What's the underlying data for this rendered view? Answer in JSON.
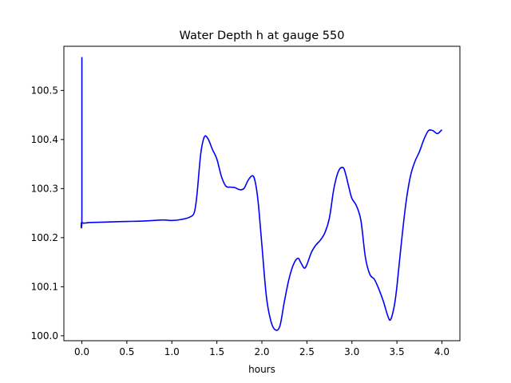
{
  "chart_data": {
    "type": "line",
    "title": "Water Depth h at gauge 550",
    "xlabel": "hours",
    "ylabel": "",
    "xlim": [
      -0.2,
      4.2
    ],
    "ylim": [
      99.99,
      100.59
    ],
    "xticks": [
      0.0,
      0.5,
      1.0,
      1.5,
      2.0,
      2.5,
      3.0,
      3.5,
      4.0
    ],
    "xtick_labels": [
      "0.0",
      "0.5",
      "1.0",
      "1.5",
      "2.0",
      "2.5",
      "3.0",
      "3.5",
      "4.0"
    ],
    "yticks": [
      100.0,
      100.1,
      100.2,
      100.3,
      100.4,
      100.5
    ],
    "ytick_labels": [
      "100.0",
      "100.1",
      "100.2",
      "100.3",
      "100.4",
      "100.5"
    ],
    "grid": false,
    "series": [
      {
        "color": "#0000ff",
        "x": [
          0.0,
          0.0,
          0.0,
          0.1,
          0.3,
          0.5,
          0.7,
          0.9,
          1.0,
          1.1,
          1.2,
          1.25,
          1.28,
          1.32,
          1.36,
          1.4,
          1.45,
          1.5,
          1.55,
          1.6,
          1.65,
          1.7,
          1.75,
          1.8,
          1.85,
          1.9,
          1.93,
          1.96,
          2.0,
          2.05,
          2.1,
          2.15,
          2.2,
          2.25,
          2.3,
          2.35,
          2.4,
          2.43,
          2.47,
          2.5,
          2.55,
          2.6,
          2.65,
          2.7,
          2.75,
          2.8,
          2.85,
          2.9,
          2.93,
          2.97,
          3.0,
          3.05,
          3.1,
          3.15,
          3.2,
          3.25,
          3.3,
          3.35,
          3.4,
          3.43,
          3.47,
          3.5,
          3.55,
          3.6,
          3.65,
          3.7,
          3.75,
          3.8,
          3.85,
          3.9,
          3.95,
          4.0
        ],
        "y": [
          100.568,
          100.25,
          100.231,
          100.231,
          100.232,
          100.233,
          100.234,
          100.236,
          100.235,
          100.237,
          100.242,
          100.252,
          100.29,
          100.37,
          100.405,
          100.402,
          100.38,
          100.36,
          100.325,
          100.305,
          100.303,
          100.302,
          100.298,
          100.3,
          100.318,
          100.326,
          100.31,
          100.27,
          100.185,
          100.08,
          100.03,
          100.012,
          100.02,
          100.07,
          100.115,
          100.145,
          100.158,
          100.15,
          100.138,
          100.145,
          100.17,
          100.185,
          100.195,
          100.21,
          100.24,
          100.3,
          100.335,
          100.343,
          100.33,
          100.3,
          100.28,
          100.265,
          100.235,
          100.16,
          100.125,
          100.115,
          100.095,
          100.07,
          100.04,
          100.033,
          100.06,
          100.1,
          100.19,
          100.27,
          100.325,
          100.355,
          100.375,
          100.4,
          100.418,
          100.418,
          100.412,
          100.42
        ]
      }
    ]
  }
}
